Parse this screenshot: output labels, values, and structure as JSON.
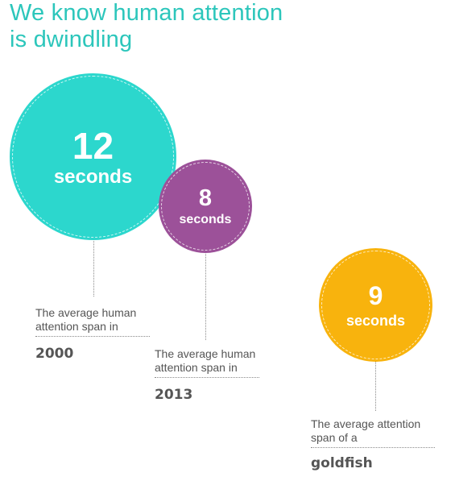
{
  "title": {
    "line1": "We know human attention",
    "line2": "is dwindling"
  },
  "colors": {
    "title": "#2cc6bb",
    "bubble_2000": "#2cd7cd",
    "bubble_2013": "#9c5199",
    "bubble_goldfish": "#f8b30d",
    "text": "#555555"
  },
  "chart_data": {
    "type": "bubble",
    "series": [
      {
        "value": 12,
        "unit": "seconds",
        "caption": "The average human attention span in",
        "label": "2000"
      },
      {
        "value": 8,
        "unit": "seconds",
        "caption": "The average human attention span in",
        "label": "2013"
      },
      {
        "value": 9,
        "unit": "seconds",
        "caption": "The average attention span of a",
        "label": "goldfish"
      }
    ]
  }
}
